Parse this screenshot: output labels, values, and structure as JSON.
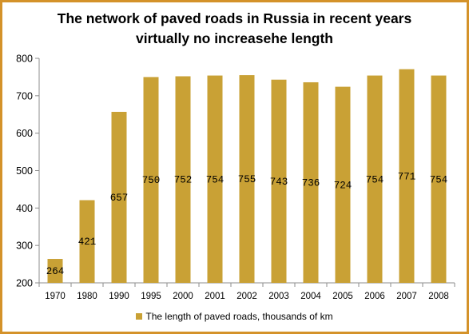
{
  "colors": {
    "frame": "#d4922a",
    "bar": "#c9a135",
    "axis": "#8c8c8c"
  },
  "chart_data": {
    "type": "bar",
    "title": "The network of paved roads in Russia in recent years virtually no increasehe length",
    "title_lines": [
      "The network of paved roads in Russia in recent years",
      "virtually no increasehe length"
    ],
    "xlabel": "",
    "ylabel": "",
    "categories": [
      "1970",
      "1980",
      "1990",
      "1995",
      "2000",
      "2001",
      "2002",
      "2003",
      "2004",
      "2005",
      "2006",
      "2007",
      "2008"
    ],
    "series": [
      {
        "name": "The length of paved roads, thousands of km",
        "values": [
          264,
          421,
          657,
          750,
          752,
          754,
          755,
          743,
          736,
          724,
          754,
          771,
          754
        ]
      }
    ],
    "data_labels": [
      "264",
      "421",
      "657",
      "750",
      "752",
      "754",
      "755",
      "743",
      "736",
      "724",
      "754",
      "771",
      "754"
    ],
    "ylim": [
      200,
      800
    ],
    "yticks": [
      "200",
      "300",
      "400",
      "500",
      "600",
      "700",
      "800"
    ],
    "grid": false,
    "legend": "bottom"
  }
}
